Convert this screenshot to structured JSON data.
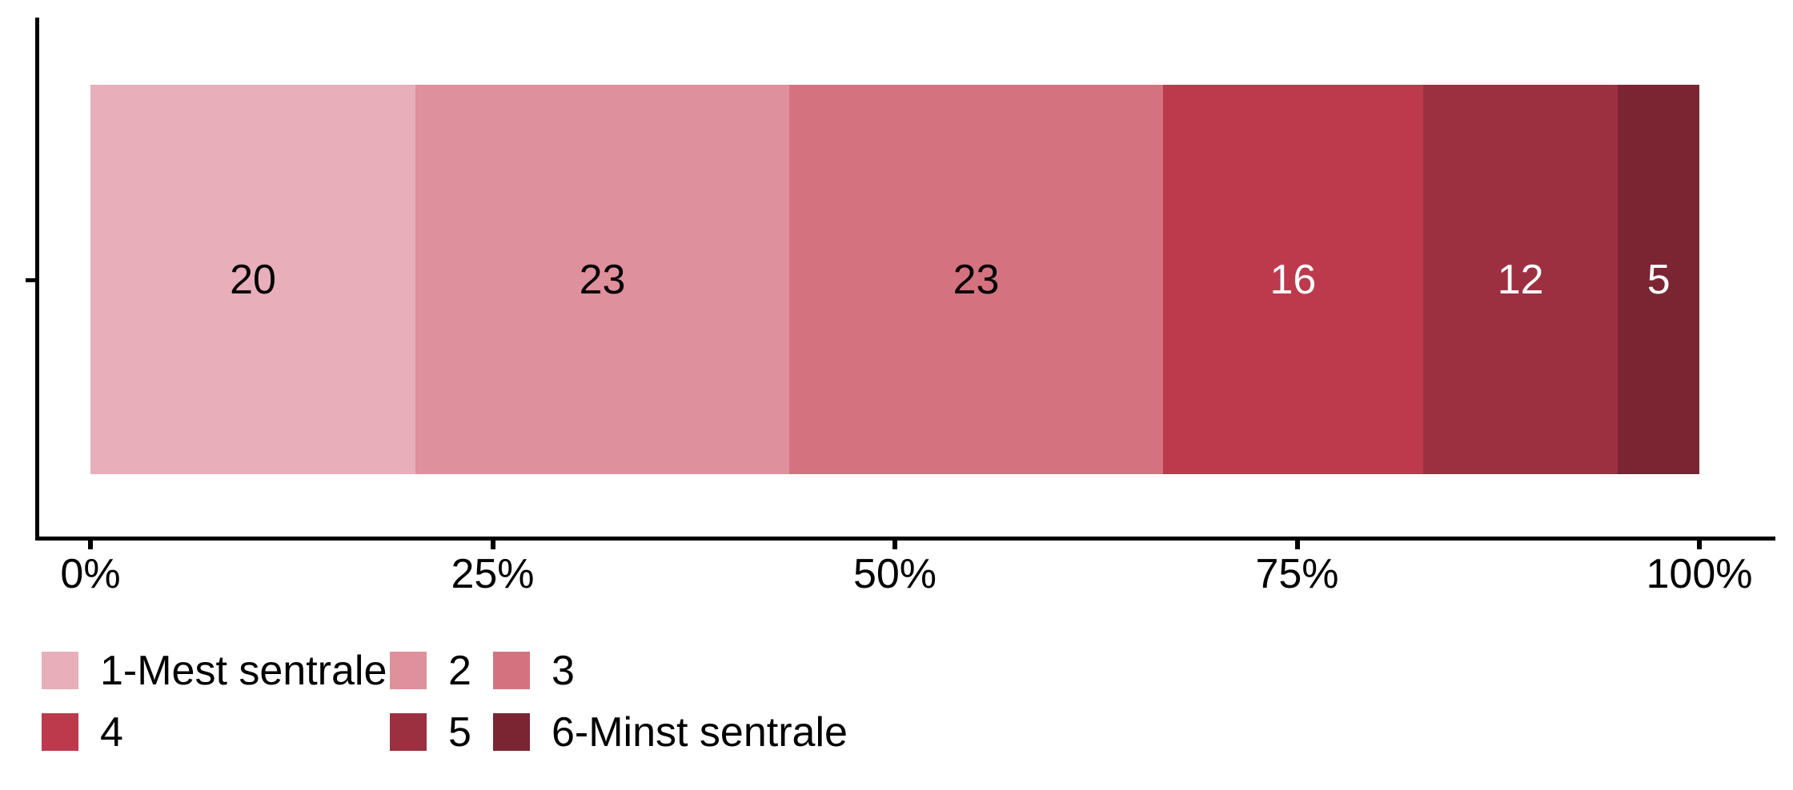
{
  "chart_data": {
    "type": "bar",
    "variant": "horizontal-stacked-percent",
    "title": "",
    "xlabel": "",
    "ylabel": "",
    "categories": [
      ""
    ],
    "series": [
      {
        "name": "1-Mest sentrale",
        "value": 20,
        "color": "#E8AEB9",
        "label_color": "#000000"
      },
      {
        "name": "2",
        "value": 23,
        "color": "#DE909C",
        "label_color": "#000000"
      },
      {
        "name": "3",
        "value": 23,
        "color": "#D4737F",
        "label_color": "#000000"
      },
      {
        "name": "4",
        "value": 16,
        "color": "#BC3A4C",
        "label_color": "#FFFFFF"
      },
      {
        "name": "5",
        "value": 12,
        "color": "#9D3040",
        "label_color": "#FFFFFF"
      },
      {
        "name": "6-Minst sentrale",
        "value": 5,
        "color": "#7B2532",
        "label_color": "#FFFFFF"
      }
    ],
    "x_axis": {
      "tick_labels": [
        "0%",
        "25%",
        "50%",
        "75%",
        "100%"
      ],
      "range": [
        0,
        100
      ],
      "grid": false,
      "axis_color": "#000000"
    },
    "y_axis": {
      "tick_labels": [
        ""
      ],
      "axis_color": "#000000"
    },
    "legend": {
      "position": "bottom-left",
      "rows": 2,
      "columns": 3
    }
  }
}
